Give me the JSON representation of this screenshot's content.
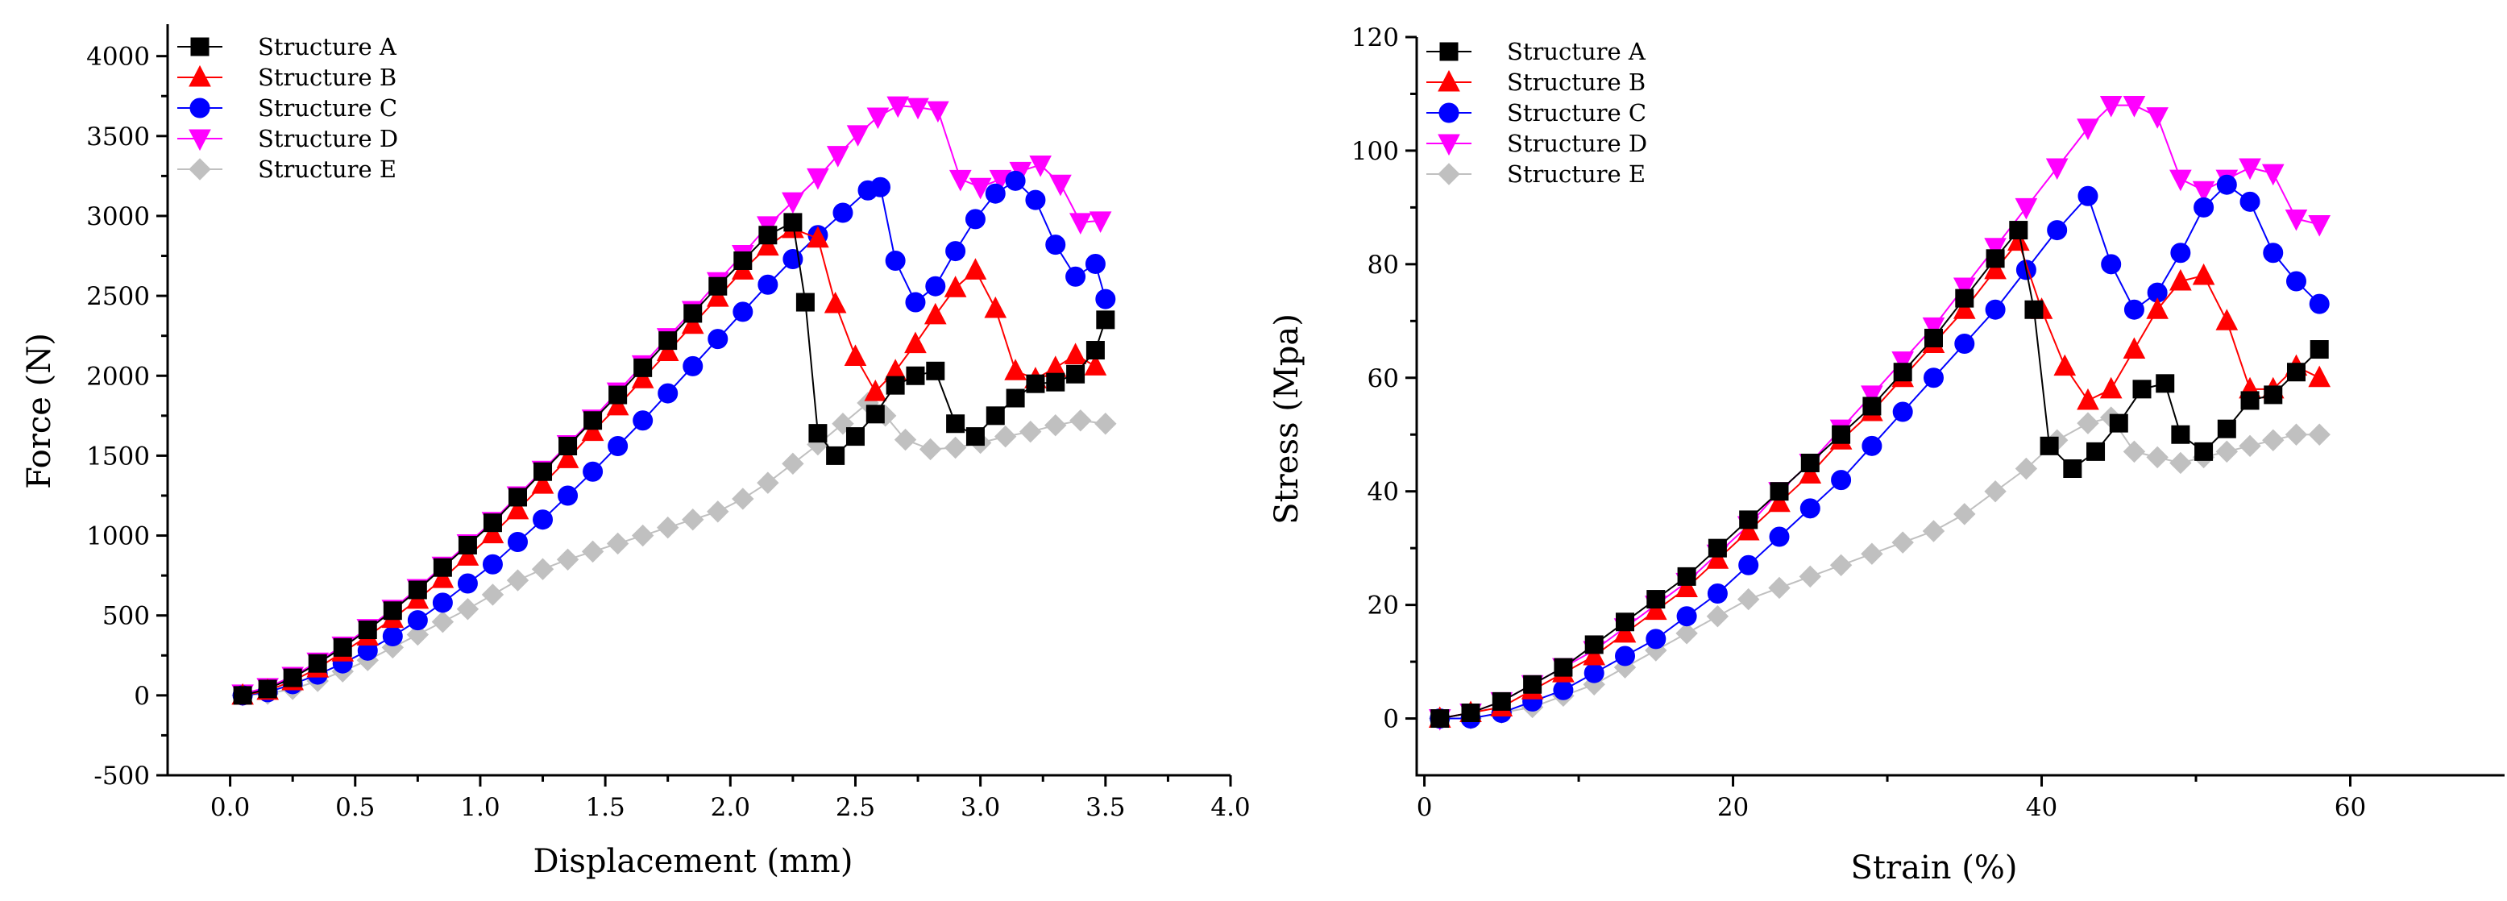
{
  "chart_data": [
    {
      "type": "line",
      "name": "force-displacement",
      "xlabel": "Displacement (mm)",
      "ylabel": "Force (N)",
      "xlim": [
        -0.25,
        4.0
      ],
      "ylim": [
        -500,
        4200
      ],
      "xticks": [
        0.0,
        0.5,
        1.0,
        1.5,
        2.0,
        2.5,
        3.0,
        3.5,
        4.0
      ],
      "xtick_labels": [
        "0.0",
        "0.5",
        "1.0",
        "1.5",
        "2.0",
        "2.5",
        "3.0",
        "3.5",
        "4.0"
      ],
      "yticks": [
        -500,
        0,
        500,
        1000,
        1500,
        2000,
        2500,
        3000,
        3500,
        4000
      ],
      "ytick_labels": [
        "-500",
        "0",
        "500",
        "1000",
        "1500",
        "2000",
        "2500",
        "3000",
        "3500",
        "4000"
      ],
      "legend_position": "top-left",
      "series": [
        {
          "name": "Structure A",
          "color": "#000000",
          "marker": "square",
          "x": [
            0.05,
            0.15,
            0.25,
            0.35,
            0.45,
            0.55,
            0.65,
            0.75,
            0.85,
            0.95,
            1.05,
            1.15,
            1.25,
            1.35,
            1.45,
            1.55,
            1.65,
            1.75,
            1.85,
            1.95,
            2.05,
            2.15,
            2.25,
            2.3,
            2.35,
            2.42,
            2.5,
            2.58,
            2.66,
            2.74,
            2.82,
            2.9,
            2.98,
            3.06,
            3.14,
            3.22,
            3.3,
            3.38,
            3.46,
            3.5
          ],
          "y": [
            0,
            40,
            110,
            200,
            300,
            410,
            530,
            660,
            800,
            940,
            1080,
            1240,
            1400,
            1560,
            1720,
            1880,
            2050,
            2220,
            2390,
            2560,
            2720,
            2880,
            2960,
            2460,
            1640,
            1500,
            1620,
            1760,
            1940,
            2000,
            2030,
            1700,
            1620,
            1750,
            1860,
            1950,
            1960,
            2010,
            2160,
            2350
          ]
        },
        {
          "name": "Structure B",
          "color": "#ff0000",
          "marker": "triangle-up",
          "x": [
            0.05,
            0.15,
            0.25,
            0.35,
            0.45,
            0.55,
            0.65,
            0.75,
            0.85,
            0.95,
            1.05,
            1.15,
            1.25,
            1.35,
            1.45,
            1.55,
            1.65,
            1.75,
            1.85,
            1.95,
            2.05,
            2.15,
            2.25,
            2.35,
            2.42,
            2.5,
            2.58,
            2.66,
            2.74,
            2.82,
            2.9,
            2.98,
            3.06,
            3.14,
            3.22,
            3.3,
            3.38,
            3.46
          ],
          "y": [
            0,
            30,
            90,
            170,
            270,
            370,
            480,
            600,
            730,
            870,
            1010,
            1160,
            1320,
            1480,
            1650,
            1810,
            1980,
            2150,
            2320,
            2490,
            2660,
            2810,
            2920,
            2860,
            2450,
            2120,
            1900,
            2030,
            2200,
            2380,
            2550,
            2660,
            2420,
            2030,
            1980,
            2050,
            2130,
            2060
          ]
        },
        {
          "name": "Structure C",
          "color": "#0000ff",
          "marker": "circle",
          "x": [
            0.05,
            0.15,
            0.25,
            0.35,
            0.45,
            0.55,
            0.65,
            0.75,
            0.85,
            0.95,
            1.05,
            1.15,
            1.25,
            1.35,
            1.45,
            1.55,
            1.65,
            1.75,
            1.85,
            1.95,
            2.05,
            2.15,
            2.25,
            2.35,
            2.45,
            2.55,
            2.6,
            2.66,
            2.74,
            2.82,
            2.9,
            2.98,
            3.06,
            3.14,
            3.22,
            3.3,
            3.38,
            3.46,
            3.5
          ],
          "y": [
            0,
            20,
            70,
            130,
            200,
            280,
            370,
            470,
            580,
            700,
            820,
            960,
            1100,
            1250,
            1400,
            1560,
            1720,
            1890,
            2060,
            2230,
            2400,
            2570,
            2730,
            2880,
            3020,
            3160,
            3180,
            2720,
            2460,
            2560,
            2780,
            2980,
            3140,
            3220,
            3100,
            2820,
            2620,
            2700,
            2480
          ]
        },
        {
          "name": "Structure D",
          "color": "#ff00ff",
          "marker": "triangle-down",
          "x": [
            0.05,
            0.15,
            0.25,
            0.35,
            0.45,
            0.55,
            0.65,
            0.75,
            0.85,
            0.95,
            1.05,
            1.15,
            1.25,
            1.35,
            1.45,
            1.55,
            1.65,
            1.75,
            1.85,
            1.95,
            2.05,
            2.15,
            2.25,
            2.35,
            2.43,
            2.51,
            2.59,
            2.67,
            2.75,
            2.83,
            2.92,
            3.0,
            3.08,
            3.16,
            3.24,
            3.32,
            3.4,
            3.48
          ],
          "y": [
            10,
            50,
            120,
            210,
            310,
            420,
            540,
            670,
            810,
            950,
            1090,
            1250,
            1410,
            1570,
            1730,
            1900,
            2070,
            2240,
            2410,
            2590,
            2760,
            2940,
            3090,
            3240,
            3380,
            3510,
            3620,
            3690,
            3680,
            3660,
            3230,
            3180,
            3230,
            3280,
            3320,
            3200,
            2960,
            2970
          ]
        },
        {
          "name": "Structure E",
          "color": "#c0c0c0",
          "marker": "diamond",
          "x": [
            0.05,
            0.15,
            0.25,
            0.35,
            0.45,
            0.55,
            0.65,
            0.75,
            0.85,
            0.95,
            1.05,
            1.15,
            1.25,
            1.35,
            1.45,
            1.55,
            1.65,
            1.75,
            1.85,
            1.95,
            2.05,
            2.15,
            2.25,
            2.35,
            2.45,
            2.55,
            2.62,
            2.7,
            2.8,
            2.9,
            3.0,
            3.1,
            3.2,
            3.3,
            3.4,
            3.5
          ],
          "y": [
            0,
            10,
            40,
            90,
            150,
            220,
            300,
            380,
            460,
            540,
            630,
            720,
            790,
            850,
            900,
            950,
            1000,
            1050,
            1100,
            1150,
            1230,
            1330,
            1450,
            1570,
            1700,
            1830,
            1750,
            1600,
            1540,
            1550,
            1580,
            1620,
            1650,
            1690,
            1720,
            1700
          ]
        }
      ]
    },
    {
      "type": "line",
      "name": "stress-strain",
      "xlabel": "Strain (%)",
      "ylabel": "Stress (Mpa)",
      "xlim": [
        -0.5,
        70
      ],
      "ylim": [
        -10,
        120
      ],
      "xticks": [
        0,
        20,
        40,
        60
      ],
      "xtick_labels": [
        "0",
        "20",
        "40",
        "60"
      ],
      "yticks": [
        0,
        20,
        40,
        60,
        80,
        100,
        120
      ],
      "ytick_labels": [
        "0",
        "20",
        "40",
        "60",
        "80",
        "100",
        "120"
      ],
      "legend_position": "top-left",
      "series": [
        {
          "name": "Structure A",
          "color": "#000000",
          "marker": "square",
          "x": [
            1,
            3,
            5,
            7,
            9,
            11,
            13,
            15,
            17,
            19,
            21,
            23,
            25,
            27,
            29,
            31,
            33,
            35,
            37,
            38.5,
            39.5,
            40.5,
            42,
            43.5,
            45,
            46.5,
            48,
            49,
            50.5,
            52,
            53.5,
            55,
            56.5,
            58
          ],
          "y": [
            0,
            1,
            3,
            6,
            9,
            13,
            17,
            21,
            25,
            30,
            35,
            40,
            45,
            50,
            55,
            61,
            67,
            74,
            81,
            86,
            72,
            48,
            44,
            47,
            52,
            58,
            59,
            50,
            47,
            51,
            56,
            57,
            61,
            65
          ]
        },
        {
          "name": "Structure B",
          "color": "#ff0000",
          "marker": "triangle-up",
          "x": [
            1,
            3,
            5,
            7,
            9,
            11,
            13,
            15,
            17,
            19,
            21,
            23,
            25,
            27,
            29,
            31,
            33,
            35,
            37,
            38.5,
            40,
            41.5,
            43,
            44.5,
            46,
            47.5,
            49,
            50.5,
            52,
            53.5,
            55,
            56.5,
            58
          ],
          "y": [
            0,
            1,
            2,
            5,
            8,
            11,
            15,
            19,
            23,
            28,
            33,
            38,
            43,
            49,
            54,
            60,
            66,
            72,
            79,
            84,
            72,
            62,
            56,
            58,
            65,
            72,
            77,
            78,
            70,
            58,
            58,
            62,
            60
          ]
        },
        {
          "name": "Structure C",
          "color": "#0000ff",
          "marker": "circle",
          "x": [
            1,
            3,
            5,
            7,
            9,
            11,
            13,
            15,
            17,
            19,
            21,
            23,
            25,
            27,
            29,
            31,
            33,
            35,
            37,
            39,
            41,
            43,
            44.5,
            46,
            47.5,
            49,
            50.5,
            52,
            53.5,
            55,
            56.5,
            58
          ],
          "y": [
            0,
            0,
            1,
            3,
            5,
            8,
            11,
            14,
            18,
            22,
            27,
            32,
            37,
            42,
            48,
            54,
            60,
            66,
            72,
            79,
            86,
            92,
            80,
            72,
            75,
            82,
            90,
            94,
            91,
            82,
            77,
            73
          ]
        },
        {
          "name": "Structure D",
          "color": "#ff00ff",
          "marker": "triangle-down",
          "x": [
            1,
            3,
            5,
            7,
            9,
            11,
            13,
            15,
            17,
            19,
            21,
            23,
            25,
            27,
            29,
            31,
            33,
            35,
            37,
            39,
            41,
            43,
            44.5,
            46,
            47.5,
            49,
            50.5,
            52,
            53.5,
            55,
            56.5,
            58
          ],
          "y": [
            0,
            1,
            3,
            6,
            9,
            12,
            16,
            20,
            24,
            29,
            34,
            40,
            45,
            51,
            57,
            63,
            69,
            76,
            83,
            90,
            97,
            104,
            108,
            108,
            106,
            95,
            93,
            95,
            97,
            96,
            88,
            87
          ]
        },
        {
          "name": "Structure E",
          "color": "#c0c0c0",
          "marker": "diamond",
          "x": [
            1,
            3,
            5,
            7,
            9,
            11,
            13,
            15,
            17,
            19,
            21,
            23,
            25,
            27,
            29,
            31,
            33,
            35,
            37,
            39,
            41,
            43,
            44.5,
            46,
            47.5,
            49,
            50.5,
            52,
            53.5,
            55,
            56.5,
            58
          ],
          "y": [
            0,
            0,
            1,
            2,
            4,
            6,
            9,
            12,
            15,
            18,
            21,
            23,
            25,
            27,
            29,
            31,
            33,
            36,
            40,
            44,
            49,
            52,
            53,
            47,
            46,
            45,
            46,
            47,
            48,
            49,
            50,
            50
          ]
        }
      ]
    }
  ]
}
